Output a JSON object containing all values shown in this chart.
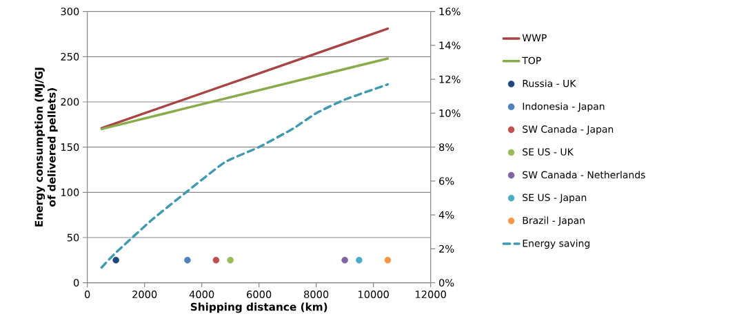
{
  "chart_data": {
    "type": "line",
    "xlabel": "Shipping distance (km)",
    "ylabel": "Energy consumption (MJ/GJ of delivered pellets)",
    "xlim": [
      0,
      12000
    ],
    "xticks": [
      0,
      2000,
      4000,
      6000,
      8000,
      10000,
      12000
    ],
    "ylim": [
      0,
      300
    ],
    "yticks": [
      0,
      50,
      100,
      150,
      200,
      250,
      300
    ],
    "y2lim": [
      0,
      16
    ],
    "y2ticks": [
      {
        "value": 0,
        "label": "0%"
      },
      {
        "value": 2,
        "label": "2%"
      },
      {
        "value": 4,
        "label": "4%"
      },
      {
        "value": 6,
        "label": "6%"
      },
      {
        "value": 8,
        "label": "8%"
      },
      {
        "value": 10,
        "label": "10%"
      },
      {
        "value": 12,
        "label": "12%"
      },
      {
        "value": 14,
        "label": "14%"
      },
      {
        "value": 16,
        "label": "16%"
      }
    ],
    "grid": "y",
    "legend": "right",
    "series": [
      {
        "name": "WWP",
        "line_style": "solid",
        "color": "#a84443",
        "x": [
          500,
          10500
        ],
        "values": [
          171,
          281
        ]
      },
      {
        "name": "TOP",
        "line_style": "solid",
        "color": "#8aab4a",
        "x": [
          500,
          10500
        ],
        "values": [
          170,
          248
        ]
      },
      {
        "name": "Russia - UK",
        "type": "scatter",
        "marker": "circle",
        "color": "#1f497d",
        "x": [
          1000
        ],
        "values": [
          25
        ]
      },
      {
        "name": "Indonesia - Japan",
        "type": "scatter",
        "marker": "circle",
        "color": "#4f81bd",
        "x": [
          3500
        ],
        "values": [
          25
        ]
      },
      {
        "name": "SW Canada - Japan",
        "type": "scatter",
        "marker": "circle",
        "color": "#c0504d",
        "x": [
          4500
        ],
        "values": [
          25
        ]
      },
      {
        "name": "SE US - UK",
        "type": "scatter",
        "marker": "circle",
        "color": "#9bbb59",
        "x": [
          5000
        ],
        "values": [
          25
        ]
      },
      {
        "name": "SW Canada - Netherlands",
        "type": "scatter",
        "marker": "circle",
        "color": "#8064a2",
        "x": [
          9000
        ],
        "values": [
          25
        ]
      },
      {
        "name": "SE US - Japan",
        "type": "scatter",
        "marker": "circle",
        "color": "#4bacc6",
        "x": [
          9500
        ],
        "values": [
          25
        ]
      },
      {
        "name": "Brazil - Japan",
        "type": "scatter",
        "marker": "circle",
        "color": "#f79646",
        "x": [
          10500
        ],
        "values": [
          25
        ]
      },
      {
        "name": "Energy saving",
        "axis": "y2",
        "line_style": "dashed",
        "color": "#3f9ab0",
        "x": [
          500,
          950,
          2250,
          3500,
          4800,
          6000,
          7200,
          8000,
          9000,
          10500
        ],
        "values": [
          0.9,
          1.7,
          3.7,
          5.4,
          7.1,
          8.0,
          9.1,
          10.0,
          10.8,
          11.7
        ]
      }
    ]
  }
}
